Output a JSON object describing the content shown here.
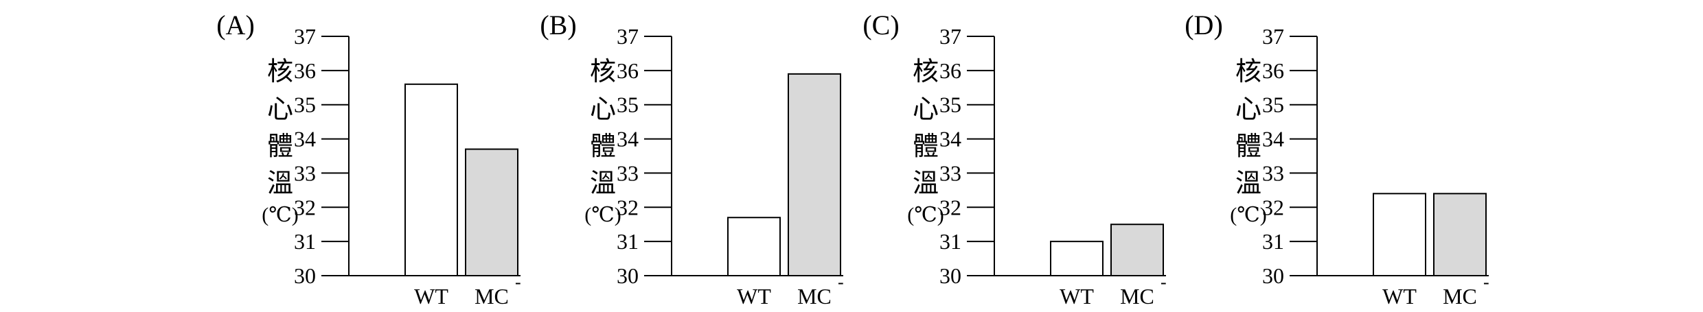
{
  "chart_data": [
    {
      "type": "bar",
      "panel_label": "(A)",
      "ylabel_chars": [
        "核",
        "心",
        "體",
        "溫",
        "(℃)"
      ],
      "categories": [
        "WT",
        "MC"
      ],
      "category_superscripts": [
        "",
        "-"
      ],
      "values": [
        35.6,
        33.7
      ],
      "yticks": [
        30,
        31,
        32,
        33,
        34,
        35,
        36,
        37
      ],
      "ylim": [
        30,
        37
      ],
      "bar_colors": [
        "#ffffff",
        "#d9d9d9"
      ]
    },
    {
      "type": "bar",
      "panel_label": "(B)",
      "ylabel_chars": [
        "核",
        "心",
        "體",
        "溫",
        "(℃)"
      ],
      "categories": [
        "WT",
        "MC"
      ],
      "category_superscripts": [
        "",
        "-"
      ],
      "values": [
        31.7,
        35.9
      ],
      "yticks": [
        30,
        31,
        32,
        33,
        34,
        35,
        36,
        37
      ],
      "ylim": [
        30,
        37
      ],
      "bar_colors": [
        "#ffffff",
        "#d9d9d9"
      ]
    },
    {
      "type": "bar",
      "panel_label": "(C)",
      "ylabel_chars": [
        "核",
        "心",
        "體",
        "溫",
        "(℃)"
      ],
      "categories": [
        "WT",
        "MC"
      ],
      "category_superscripts": [
        "",
        "-"
      ],
      "values": [
        31.0,
        31.5
      ],
      "yticks": [
        30,
        31,
        32,
        33,
        34,
        35,
        36,
        37
      ],
      "ylim": [
        30,
        37
      ],
      "bar_colors": [
        "#ffffff",
        "#d9d9d9"
      ]
    },
    {
      "type": "bar",
      "panel_label": "(D)",
      "ylabel_chars": [
        "核",
        "心",
        "體",
        "溫",
        "(℃)"
      ],
      "categories": [
        "WT",
        "MC"
      ],
      "category_superscripts": [
        "",
        "-"
      ],
      "values": [
        32.4,
        32.4
      ],
      "yticks": [
        30,
        31,
        32,
        33,
        34,
        35,
        36,
        37
      ],
      "ylim": [
        30,
        37
      ],
      "bar_colors": [
        "#ffffff",
        "#d9d9d9"
      ]
    }
  ]
}
